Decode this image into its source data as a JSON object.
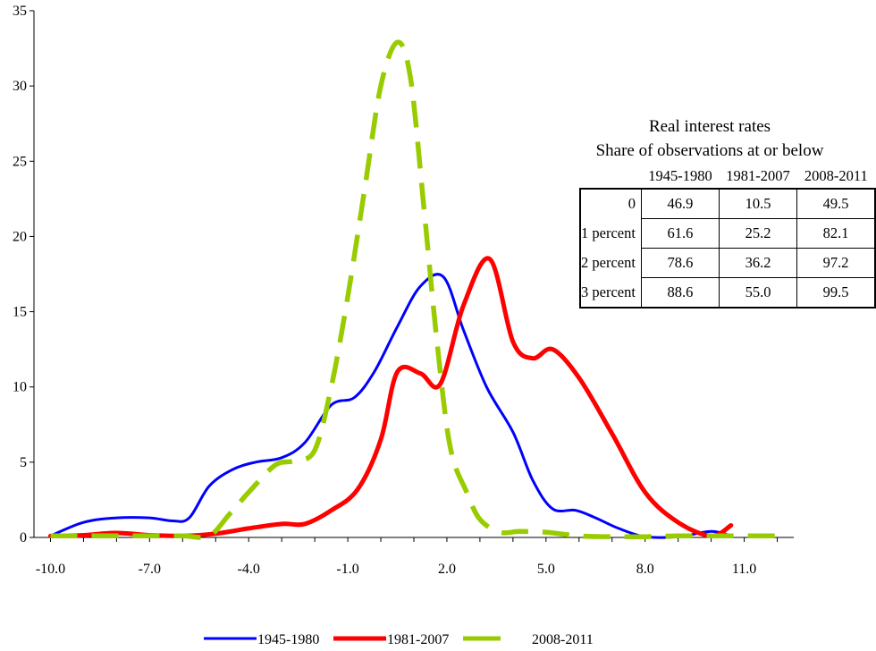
{
  "chart_data": {
    "type": "line",
    "title": "",
    "xlabel": "",
    "ylabel": "",
    "xlim": [
      -10.5,
      12.5
    ],
    "ylim": [
      0,
      35
    ],
    "x_ticks": [
      -10.0,
      -7.0,
      -4.0,
      -1.0,
      2.0,
      5.0,
      8.0,
      11.0
    ],
    "x_tick_labels": [
      "-10.0",
      "-7.0",
      "-4.0",
      "-1.0",
      "2.0",
      "5.0",
      "8.0",
      "11.0"
    ],
    "y_ticks": [
      0,
      5,
      10,
      15,
      20,
      25,
      30,
      35
    ],
    "y_tick_labels": [
      "0",
      "5",
      "10",
      "15",
      "20",
      "25",
      "30",
      "35"
    ],
    "grid": false,
    "legend": "bottom",
    "series": [
      {
        "name": "1945-1980",
        "color": "#0000ff",
        "style": "solid",
        "x": [
          -10.0,
          -9.0,
          -8.0,
          -7.0,
          -6.3,
          -5.8,
          -5.2,
          -4.5,
          -3.8,
          -3.0,
          -2.3,
          -1.5,
          -0.8,
          -0.2,
          0.5,
          1.2,
          1.9,
          2.5,
          3.2,
          4.0,
          4.6,
          5.2,
          5.9,
          6.5,
          7.2,
          8.0,
          9.0,
          10.0,
          10.6
        ],
        "y": [
          0.1,
          1.0,
          1.3,
          1.3,
          1.1,
          1.3,
          3.4,
          4.5,
          5.0,
          5.3,
          6.3,
          8.8,
          9.3,
          11.0,
          14.0,
          16.7,
          17.3,
          13.8,
          10.0,
          7.0,
          3.8,
          1.9,
          1.8,
          1.3,
          0.6,
          0.05,
          0.05,
          0.4,
          0.1
        ]
      },
      {
        "name": "1981-2007",
        "color": "#ff0000",
        "style": "solid",
        "x": [
          -10.0,
          -9.0,
          -8.0,
          -7.0,
          -6.0,
          -5.0,
          -4.0,
          -3.0,
          -2.3,
          -1.5,
          -0.7,
          0.0,
          0.5,
          1.2,
          1.8,
          2.5,
          3.3,
          4.0,
          4.6,
          5.2,
          6.0,
          7.0,
          8.0,
          9.0,
          10.0,
          10.6
        ],
        "y": [
          0.1,
          0.15,
          0.3,
          0.15,
          0.1,
          0.25,
          0.6,
          0.9,
          0.9,
          1.8,
          3.2,
          6.5,
          11.0,
          10.9,
          10.2,
          15.4,
          18.5,
          13.0,
          11.9,
          12.5,
          10.6,
          6.9,
          3.0,
          1.0,
          0.1,
          0.8
        ]
      },
      {
        "name": "2008-2011",
        "color": "#99cc00",
        "style": "dashed",
        "x": [
          -10.0,
          -9.0,
          -8.0,
          -7.0,
          -6.0,
          -5.2,
          -4.6,
          -4.0,
          -3.2,
          -2.6,
          -2.0,
          -1.5,
          -1.0,
          -0.5,
          0.0,
          0.5,
          0.9,
          1.3,
          1.7,
          2.1,
          2.6,
          3.0,
          3.6,
          4.2,
          5.0,
          6.0,
          7.0,
          8.0,
          9.0,
          10.0,
          11.0,
          12.0
        ],
        "y": [
          0.1,
          0.1,
          0.1,
          0.1,
          0.1,
          0.1,
          1.5,
          3.0,
          4.8,
          5.1,
          5.8,
          10.0,
          16.0,
          23.0,
          30.0,
          32.9,
          30.5,
          22.0,
          13.0,
          6.0,
          3.0,
          1.2,
          0.35,
          0.4,
          0.35,
          0.1,
          0.05,
          0.05,
          0.1,
          0.1,
          0.1,
          0.1
        ]
      }
    ]
  },
  "inset": {
    "title": "Real interest rates",
    "subtitle": "Share of observations at or below",
    "columns": [
      "1945-1980",
      "1981-2007",
      "2008-2011"
    ],
    "rows": [
      {
        "label": "0",
        "values": [
          "46.9",
          "10.5",
          "49.5"
        ]
      },
      {
        "label": "1 percent",
        "values": [
          "61.6",
          "25.2",
          "82.1"
        ]
      },
      {
        "label": "2 percent",
        "values": [
          "78.6",
          "36.2",
          "97.2"
        ]
      },
      {
        "label": "3 percent",
        "values": [
          "88.6",
          "55.0",
          "99.5"
        ]
      }
    ]
  }
}
